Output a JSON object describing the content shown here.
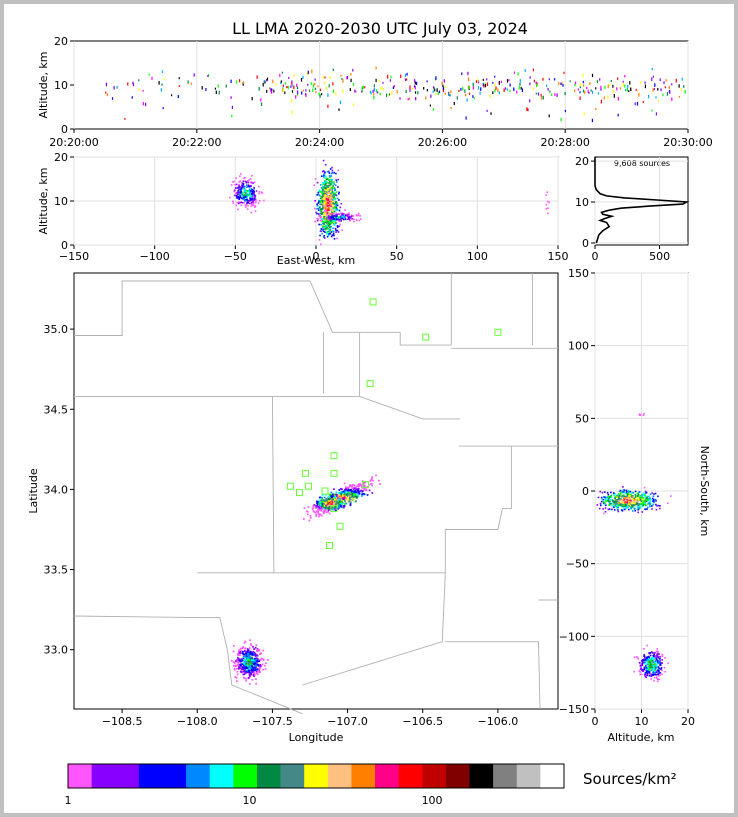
{
  "title": "LL LMA 2020-2030 UTC July 03, 2024",
  "source_count_label": "9,608 sources",
  "colorbar_label": "Sources/km²",
  "colors": {
    "colorbar": [
      "#ff55ff",
      "#8800ff",
      "#8800ff",
      "#0000ff",
      "#0000ff",
      "#0088ff",
      "#00ffff",
      "#00ff00",
      "#008844",
      "#448888",
      "#ffff00",
      "#ffc080",
      "#ff8000",
      "#ff0088",
      "#ff0000",
      "#c00000",
      "#800000",
      "#000000",
      "#808080",
      "#c0c0c0",
      "#ffffff"
    ],
    "station_marker": "#66ff33",
    "border": "#b0b0b0",
    "grid": "#e0e0e0"
  },
  "chart_data": [
    {
      "type": "scatter",
      "panel": "time-altitude",
      "xlabel": "",
      "ylabel": "Altitude, km",
      "x_ticks": [
        "20:20:00",
        "20:22:00",
        "20:24:00",
        "20:26:00",
        "20:28:00",
        "20:30:00"
      ],
      "xlim": [
        "20:20:00",
        "20:30:00"
      ],
      "y_ticks": [
        "0",
        "10",
        "20"
      ],
      "ylim": [
        0,
        20
      ]
    },
    {
      "type": "heatmap",
      "panel": "east-west-altitude",
      "xlabel": "East-West, km",
      "ylabel": "Altitude, km",
      "x_ticks": [
        "−150",
        "−100",
        "−50",
        "0",
        "50",
        "100",
        "150"
      ],
      "xlim": [
        -150,
        150
      ],
      "y_ticks": [
        "0",
        "10",
        "20"
      ],
      "ylim": [
        0,
        20
      ]
    },
    {
      "type": "line",
      "panel": "altitude-histogram",
      "x_ticks": [
        "0",
        "500"
      ],
      "xlim": [
        0,
        720
      ],
      "y_ticks": [
        "0",
        "10",
        "20"
      ],
      "ylim": [
        -0.5,
        21
      ],
      "profile": [
        {
          "alt": 0.0,
          "count": 10
        },
        {
          "alt": 2.0,
          "count": 30
        },
        {
          "alt": 3.0,
          "count": 60
        },
        {
          "alt": 4.0,
          "count": 110
        },
        {
          "alt": 5.0,
          "count": 90
        },
        {
          "alt": 5.5,
          "count": 40
        },
        {
          "alt": 6.0,
          "count": 80
        },
        {
          "alt": 6.5,
          "count": 130
        },
        {
          "alt": 7.0,
          "count": 60
        },
        {
          "alt": 7.5,
          "count": 50
        },
        {
          "alt": 8.0,
          "count": 110
        },
        {
          "alt": 8.5,
          "count": 200
        },
        {
          "alt": 9.0,
          "count": 420
        },
        {
          "alt": 9.5,
          "count": 680
        },
        {
          "alt": 10.0,
          "count": 710
        },
        {
          "alt": 10.5,
          "count": 480
        },
        {
          "alt": 11.0,
          "count": 230
        },
        {
          "alt": 11.5,
          "count": 90
        },
        {
          "alt": 12.0,
          "count": 40
        },
        {
          "alt": 13.0,
          "count": 10
        },
        {
          "alt": 14.0,
          "count": 0
        },
        {
          "alt": 21.0,
          "count": 0
        }
      ]
    },
    {
      "type": "heatmap",
      "panel": "plan-view",
      "xlabel": "Longitude",
      "ylabel": "Latitude",
      "x_ticks": [
        "−108.5",
        "−108.0",
        "−107.5",
        "−107.0",
        "−106.5",
        "−106.0"
      ],
      "xlim": [
        -108.82,
        -105.6
      ],
      "y_ticks": [
        "33.0",
        "33.5",
        "34.0",
        "34.5",
        "35.0"
      ],
      "ylim": [
        32.63,
        35.35
      ],
      "stations": [
        {
          "lon": -106.83,
          "lat": 35.17
        },
        {
          "lon": -106.48,
          "lat": 34.95
        },
        {
          "lon": -106.0,
          "lat": 34.98
        },
        {
          "lon": -106.85,
          "lat": 34.66
        },
        {
          "lon": -107.09,
          "lat": 34.21
        },
        {
          "lon": -107.28,
          "lat": 34.1
        },
        {
          "lon": -107.09,
          "lat": 34.1
        },
        {
          "lon": -107.38,
          "lat": 34.02
        },
        {
          "lon": -107.26,
          "lat": 34.02
        },
        {
          "lon": -107.32,
          "lat": 33.98
        },
        {
          "lon": -107.15,
          "lat": 33.99
        },
        {
          "lon": -107.09,
          "lat": 33.88
        },
        {
          "lon": -107.05,
          "lat": 33.77
        },
        {
          "lon": -107.12,
          "lat": 33.65
        },
        {
          "lon": -106.88,
          "lat": 34.03
        }
      ]
    },
    {
      "type": "heatmap",
      "panel": "altitude-north-south",
      "xlabel": "Altitude, km",
      "ylabel": "North-South, km",
      "x_ticks": [
        "0",
        "10",
        "20"
      ],
      "xlim": [
        0,
        20
      ],
      "y_ticks": [
        "150",
        "100",
        "50",
        "0",
        "−50",
        "−100",
        "−150"
      ],
      "ylim": [
        -150,
        150
      ]
    },
    {
      "type": "colorbar",
      "panel": "density-scale",
      "tick_labels": [
        "1",
        "10",
        "100"
      ],
      "scale": "log"
    }
  ]
}
